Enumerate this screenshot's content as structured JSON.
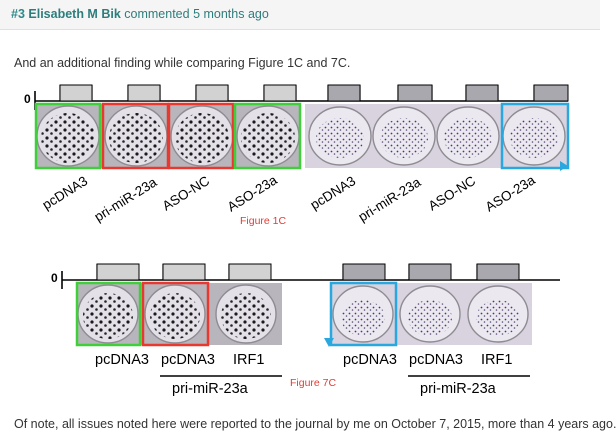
{
  "comment": {
    "number": "#3",
    "author": "Elisabeth M Bik",
    "action": "commented",
    "time_ago": "5 months ago",
    "intro": "And an additional finding while comparing Figure 1C and 7C.",
    "outro": "Of note, all issues noted here were reported to the journal by me on October 7, 2015, more than 4 years ago."
  },
  "figure_1c": {
    "axis_label": "0",
    "caption": "Figure 1C",
    "left_labels": [
      "pcDNA3",
      "pri-miR-23a",
      "ASO-NC",
      "ASO-23a"
    ],
    "right_labels": [
      "pcDNA3",
      "pri-miR-23a",
      "ASO-NC",
      "ASO-23a"
    ]
  },
  "figure_7c": {
    "axis_label": "0",
    "caption": "Figure 7C",
    "left_labels": [
      "pcDNA3",
      "pcDNA3",
      "IRF1"
    ],
    "right_labels": [
      "pcDNA3",
      "pcDNA3",
      "IRF1"
    ],
    "group_label_left": "pri-miR-23a",
    "group_label_right": "pri-miR-23a"
  },
  "highlight_colors": {
    "green": "#3fcf3a",
    "red": "#e8382f",
    "blue": "#29a8e0"
  }
}
